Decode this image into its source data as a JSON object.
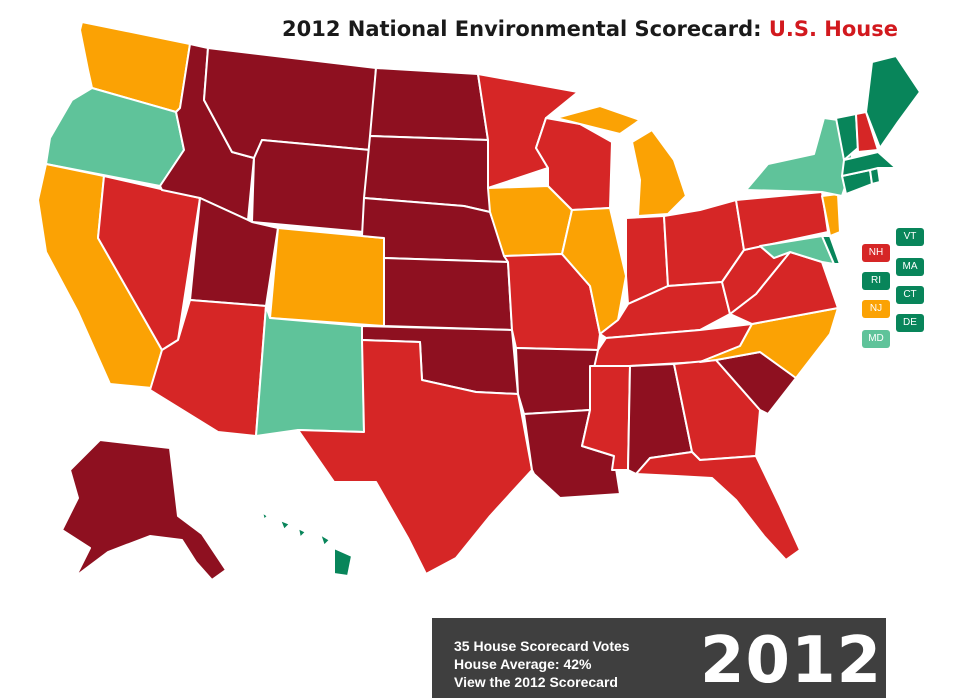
{
  "title": {
    "main": "2012 National Environmental Scorecard:",
    "accent": "U.S. House"
  },
  "colors": {
    "dark_red": "#8e1020",
    "red": "#d62626",
    "orange": "#fba204",
    "light_green": "#5fc39a",
    "dark_green": "#08855a"
  },
  "map_data": {
    "categories": [
      "dark_red",
      "red",
      "orange",
      "light_green",
      "dark_green"
    ],
    "states": {
      "AK": "dark_red",
      "HI": "dark_green",
      "WA": "orange",
      "OR": "light_green",
      "CA": "orange",
      "NV": "red",
      "ID": "dark_red",
      "MT": "dark_red",
      "WY": "dark_red",
      "UT": "dark_red",
      "AZ": "red",
      "CO": "orange",
      "NM": "light_green",
      "ND": "dark_red",
      "SD": "dark_red",
      "NE": "dark_red",
      "KS": "dark_red",
      "OK": "dark_red",
      "TX": "red",
      "MN": "red",
      "IA": "orange",
      "MO": "red",
      "AR": "dark_red",
      "LA": "dark_red",
      "WI": "red",
      "IL": "orange",
      "MI": "orange",
      "IN": "red",
      "OH": "red",
      "KY": "red",
      "TN": "red",
      "MS": "red",
      "AL": "dark_red",
      "GA": "red",
      "FL": "red",
      "SC": "dark_red",
      "NC": "orange",
      "VA": "red",
      "WV": "red",
      "PA": "red",
      "NY": "light_green",
      "VT": "dark_green",
      "NH": "red",
      "ME": "dark_green",
      "MA": "dark_green",
      "RI": "dark_green",
      "CT": "dark_green",
      "NJ": "orange",
      "DE": "dark_green",
      "MD": "light_green"
    }
  },
  "small_state_labels": [
    {
      "abbr": "NH",
      "color": "red"
    },
    {
      "abbr": "VT",
      "color": "dark_green"
    },
    {
      "abbr": "RI",
      "color": "dark_green"
    },
    {
      "abbr": "MA",
      "color": "dark_green"
    },
    {
      "abbr": "NJ",
      "color": "orange"
    },
    {
      "abbr": "CT",
      "color": "dark_green"
    },
    {
      "abbr": "MD",
      "color": "light_green"
    },
    {
      "abbr": "DE",
      "color": "dark_green"
    }
  ],
  "panel": {
    "votes": "35 House Scorecard Votes",
    "average": "House Average: 42%",
    "link": "View the 2012 Scorecard",
    "year": "2012"
  }
}
